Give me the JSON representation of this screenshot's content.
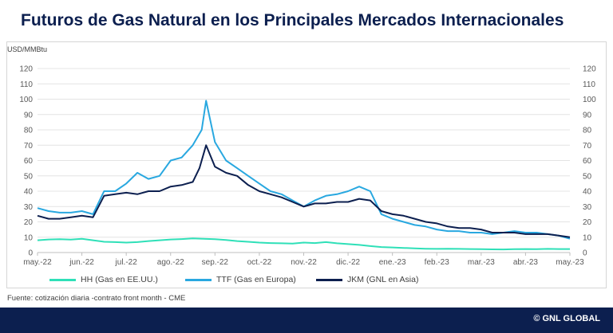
{
  "chart_data": {
    "type": "line",
    "title": "Futuros de Gas Natural en los Principales Mercados Internacionales",
    "ylabel": "USD/MMBtu",
    "ylim": [
      0,
      120
    ],
    "yticks": [
      0,
      10,
      20,
      30,
      40,
      50,
      60,
      70,
      80,
      90,
      100,
      110,
      120
    ],
    "xticks": [
      "may.-22",
      "jun.-22",
      "jul.-22",
      "ago.-22",
      "sep.-22",
      "oct.-22",
      "nov.-22",
      "dic.-22",
      "ene.-23",
      "feb.-23",
      "mar.-23",
      "abr.-23",
      "may.-23"
    ],
    "legend_position": "bottom",
    "grid": true,
    "series": [
      {
        "name": "HH (Gas en EE.UU.)",
        "color": "#2fe0b8",
        "x": [
          0,
          0.25,
          0.5,
          0.75,
          1,
          1.25,
          1.5,
          1.75,
          2,
          2.25,
          2.5,
          2.75,
          3,
          3.25,
          3.5,
          3.75,
          4,
          4.25,
          4.5,
          4.75,
          5,
          5.25,
          5.5,
          5.75,
          6,
          6.25,
          6.5,
          6.75,
          7,
          7.25,
          7.5,
          7.75,
          8,
          8.25,
          8.5,
          8.75,
          9,
          9.25,
          9.5,
          9.75,
          10,
          10.25,
          10.5,
          10.75,
          11,
          11.25,
          11.5,
          11.75,
          12
        ],
        "values": [
          8,
          8.5,
          8.7,
          8.4,
          9,
          8,
          7,
          6.8,
          6.5,
          6.8,
          7.5,
          8,
          8.5,
          8.8,
          9.2,
          9,
          8.7,
          8.2,
          7.5,
          7,
          6.5,
          6.2,
          6,
          5.8,
          6.5,
          6.2,
          6.8,
          6,
          5.5,
          5,
          4.2,
          3.6,
          3.3,
          3,
          2.7,
          2.5,
          2.4,
          2.5,
          2.4,
          2.3,
          2.2,
          2.1,
          2,
          2.2,
          2.3,
          2.2,
          2.4,
          2.3,
          2.3
        ]
      },
      {
        "name": "TTF (Gas en Europa)",
        "color": "#29a8e0",
        "x": [
          0,
          0.25,
          0.5,
          0.75,
          1,
          1.25,
          1.5,
          1.75,
          2,
          2.25,
          2.5,
          2.75,
          3,
          3.25,
          3.5,
          3.7,
          3.8,
          4,
          4.25,
          4.5,
          4.75,
          5,
          5.25,
          5.5,
          5.75,
          6,
          6.25,
          6.5,
          6.75,
          7,
          7.25,
          7.5,
          7.75,
          8,
          8.25,
          8.5,
          8.75,
          9,
          9.25,
          9.5,
          9.75,
          10,
          10.25,
          10.5,
          10.75,
          11,
          11.25,
          11.5,
          11.75,
          12
        ],
        "values": [
          29,
          27,
          26,
          26,
          27,
          25,
          40,
          40,
          45,
          52,
          48,
          50,
          60,
          62,
          70,
          80,
          99,
          72,
          60,
          55,
          50,
          45,
          40,
          38,
          34,
          30,
          34,
          37,
          38,
          40,
          43,
          40,
          25,
          22,
          20,
          18,
          17,
          15,
          14,
          14,
          13,
          13,
          12,
          13,
          14,
          13,
          13,
          12,
          11,
          9
        ]
      },
      {
        "name": "JKM (GNL en Asia)",
        "color": "#0c1f4f",
        "x": [
          0,
          0.25,
          0.5,
          0.75,
          1,
          1.25,
          1.5,
          1.75,
          2,
          2.25,
          2.5,
          2.75,
          3,
          3.25,
          3.5,
          3.65,
          3.8,
          4,
          4.25,
          4.5,
          4.75,
          5,
          5.25,
          5.5,
          5.75,
          6,
          6.25,
          6.5,
          6.75,
          7,
          7.25,
          7.5,
          7.75,
          8,
          8.25,
          8.5,
          8.75,
          9,
          9.25,
          9.5,
          9.75,
          10,
          10.25,
          10.5,
          10.75,
          11,
          11.25,
          11.5,
          11.75,
          12
        ],
        "values": [
          24,
          22,
          22,
          23,
          24,
          23,
          37,
          38,
          39,
          38,
          40,
          40,
          43,
          44,
          46,
          55,
          70,
          56,
          52,
          50,
          44,
          40,
          38,
          36,
          33,
          30,
          32,
          32,
          33,
          33,
          35,
          34,
          27,
          25,
          24,
          22,
          20,
          19,
          17,
          16,
          16,
          15,
          13,
          13,
          13,
          12,
          12,
          12,
          11,
          10
        ]
      }
    ]
  },
  "footer": {
    "source": "Fuente: cotización diaria -contrato front month - CME",
    "brand": "© GNL GLOBAL"
  }
}
